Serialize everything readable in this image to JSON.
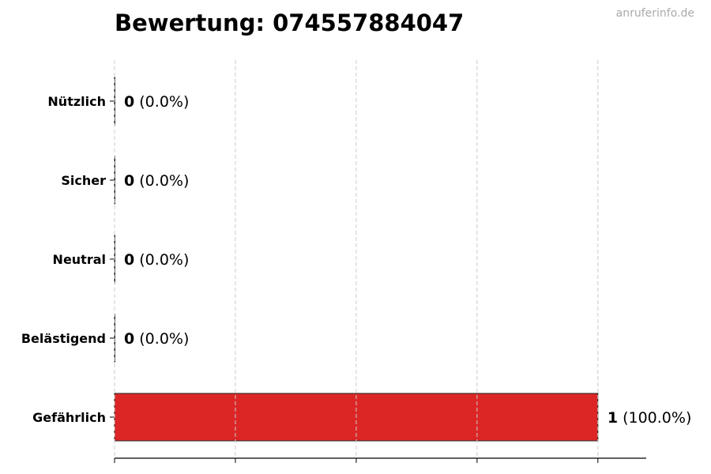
{
  "title": "Bewertung: 074557884047",
  "watermark": "anruferinfo.de",
  "chart_data": {
    "type": "bar",
    "orientation": "horizontal",
    "title": "Bewertung: 074557884047",
    "categories": [
      "Nützlich",
      "Sicher",
      "Neutral",
      "Belästigend",
      "Gefährlich"
    ],
    "values": [
      0,
      0,
      0,
      0,
      1
    ],
    "labels": [
      {
        "count": "0",
        "pct": "(0.0%)"
      },
      {
        "count": "0",
        "pct": "(0.0%)"
      },
      {
        "count": "0",
        "pct": "(0.0%)"
      },
      {
        "count": "0",
        "pct": "(0.0%)"
      },
      {
        "count": "1",
        "pct": "(100.0%)"
      }
    ],
    "colors": [
      "#22c55e",
      "#3b82f6",
      "#9ca3af",
      "#f59e0b",
      "#dc2626"
    ],
    "xlim": [
      0,
      1.1
    ],
    "xticks": [
      0,
      0.25,
      0.5,
      0.75,
      1.0
    ],
    "xtick_labels_visible": false,
    "grid": "x dashed",
    "xlabel": "",
    "ylabel": ""
  }
}
